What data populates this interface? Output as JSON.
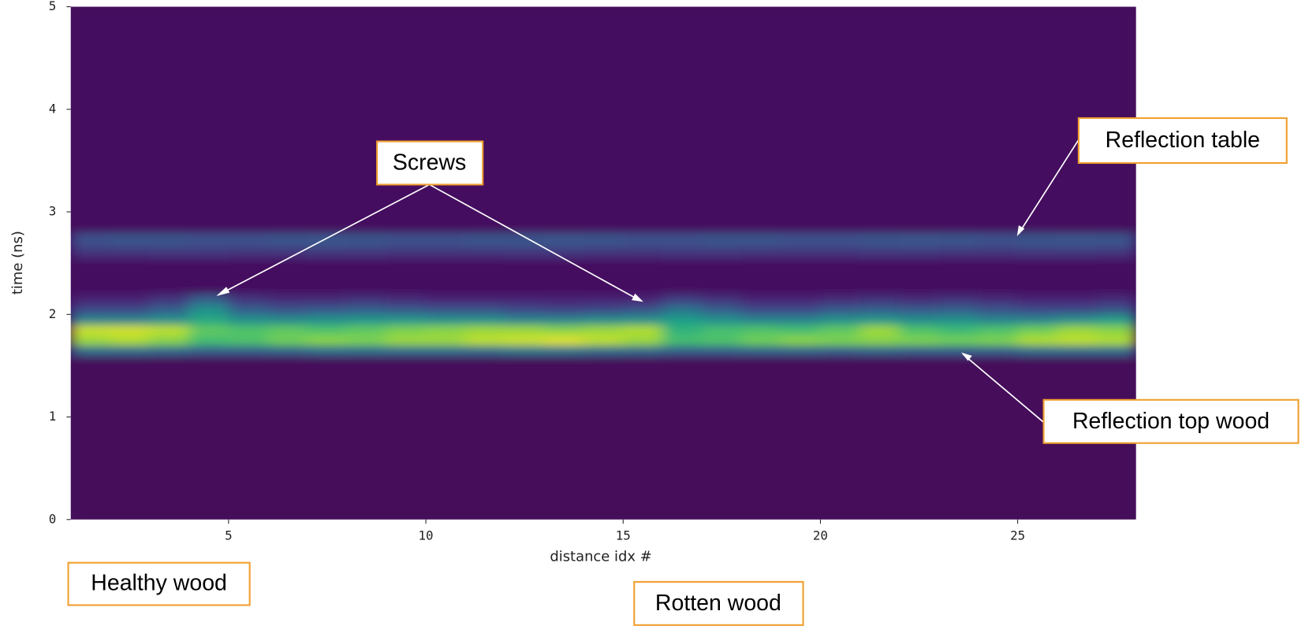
{
  "chart_data": {
    "type": "heatmap",
    "colormap": "viridis",
    "x_label": "distance idx #",
    "y_label": "time (ns)",
    "xlim": [
      1,
      28
    ],
    "ylim": [
      0,
      5
    ],
    "xticks": [
      5,
      10,
      15,
      20,
      25
    ],
    "yticks": [
      0,
      1,
      2,
      3,
      4,
      5
    ],
    "x_bins": [
      1,
      2,
      3,
      4,
      5,
      6,
      7,
      8,
      9,
      10,
      11,
      12,
      13,
      14,
      15,
      16,
      17,
      18,
      19,
      20,
      21,
      22,
      23,
      24,
      25,
      26,
      27,
      28
    ],
    "y_bins": [
      0,
      1.6,
      1.7,
      1.8,
      1.9,
      2.0,
      2.1,
      2.2,
      2.55,
      2.65,
      2.8,
      5
    ],
    "z": [
      [
        0.02,
        0.02,
        0.02,
        0.02,
        0.02,
        0.02,
        0.02,
        0.02,
        0.02,
        0.02,
        0.02,
        0.02,
        0.02,
        0.02,
        0.02,
        0.02,
        0.02,
        0.02,
        0.02,
        0.02,
        0.02,
        0.02,
        0.02,
        0.02,
        0.02,
        0.02,
        0.02
      ],
      [
        0.35,
        0.35,
        0.33,
        0.3,
        0.3,
        0.32,
        0.35,
        0.35,
        0.35,
        0.35,
        0.35,
        0.38,
        0.38,
        0.35,
        0.33,
        0.3,
        0.3,
        0.32,
        0.32,
        0.3,
        0.32,
        0.3,
        0.3,
        0.3,
        0.35,
        0.35,
        0.35
      ],
      [
        0.85,
        0.88,
        0.82,
        0.7,
        0.72,
        0.78,
        0.82,
        0.8,
        0.85,
        0.85,
        0.9,
        0.92,
        0.95,
        0.9,
        0.85,
        0.7,
        0.72,
        0.78,
        0.82,
        0.8,
        0.82,
        0.8,
        0.78,
        0.8,
        0.88,
        0.9,
        0.88
      ],
      [
        0.92,
        0.93,
        0.9,
        0.75,
        0.72,
        0.75,
        0.72,
        0.75,
        0.8,
        0.82,
        0.85,
        0.85,
        0.82,
        0.85,
        0.88,
        0.65,
        0.7,
        0.72,
        0.7,
        0.75,
        0.85,
        0.72,
        0.68,
        0.72,
        0.78,
        0.85,
        0.82
      ],
      [
        0.45,
        0.45,
        0.5,
        0.6,
        0.5,
        0.48,
        0.5,
        0.52,
        0.52,
        0.5,
        0.5,
        0.45,
        0.45,
        0.48,
        0.5,
        0.55,
        0.5,
        0.45,
        0.45,
        0.5,
        0.52,
        0.48,
        0.5,
        0.45,
        0.45,
        0.5,
        0.55
      ],
      [
        0.22,
        0.22,
        0.3,
        0.5,
        0.3,
        0.25,
        0.28,
        0.3,
        0.28,
        0.25,
        0.25,
        0.22,
        0.2,
        0.22,
        0.25,
        0.38,
        0.3,
        0.22,
        0.22,
        0.28,
        0.3,
        0.28,
        0.3,
        0.25,
        0.22,
        0.22,
        0.25
      ],
      [
        0.1,
        0.1,
        0.15,
        0.3,
        0.15,
        0.12,
        0.12,
        0.14,
        0.12,
        0.1,
        0.1,
        0.1,
        0.1,
        0.1,
        0.1,
        0.18,
        0.14,
        0.1,
        0.1,
        0.12,
        0.14,
        0.12,
        0.14,
        0.12,
        0.1,
        0.1,
        0.12
      ],
      [
        0.04,
        0.04,
        0.04,
        0.04,
        0.04,
        0.04,
        0.04,
        0.04,
        0.04,
        0.04,
        0.04,
        0.04,
        0.04,
        0.04,
        0.04,
        0.04,
        0.04,
        0.04,
        0.04,
        0.04,
        0.04,
        0.04,
        0.04,
        0.04,
        0.04,
        0.04,
        0.04
      ],
      [
        0.14,
        0.14,
        0.15,
        0.15,
        0.14,
        0.14,
        0.15,
        0.15,
        0.14,
        0.14,
        0.14,
        0.15,
        0.15,
        0.14,
        0.14,
        0.15,
        0.15,
        0.14,
        0.14,
        0.14,
        0.15,
        0.15,
        0.14,
        0.14,
        0.15,
        0.15,
        0.14
      ],
      [
        0.24,
        0.25,
        0.25,
        0.24,
        0.24,
        0.25,
        0.26,
        0.25,
        0.24,
        0.24,
        0.25,
        0.25,
        0.26,
        0.25,
        0.24,
        0.24,
        0.25,
        0.25,
        0.24,
        0.24,
        0.25,
        0.26,
        0.25,
        0.24,
        0.25,
        0.26,
        0.25
      ],
      [
        0.03,
        0.03,
        0.03,
        0.03,
        0.03,
        0.03,
        0.03,
        0.03,
        0.03,
        0.03,
        0.03,
        0.03,
        0.03,
        0.03,
        0.03,
        0.03,
        0.03,
        0.03,
        0.03,
        0.03,
        0.03,
        0.03,
        0.03,
        0.03,
        0.03,
        0.03,
        0.03
      ]
    ],
    "annotations": [
      "Screws",
      "Reflection table",
      "Reflection top wood",
      "Healthy wood",
      "Rotten wood"
    ]
  }
}
